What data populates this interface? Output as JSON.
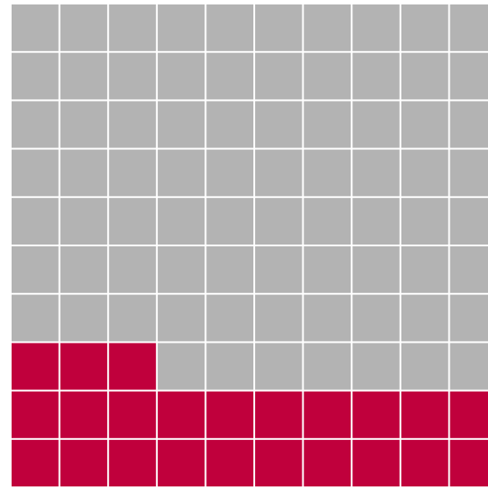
{
  "chart_data": {
    "type": "waffle",
    "rows": 10,
    "columns": 10,
    "fill_from": "bottom-left",
    "series": [
      {
        "color": "#c0003c",
        "values": [
          23
        ]
      },
      {
        "color": "#b3b3b3",
        "values": [
          77
        ]
      }
    ]
  }
}
